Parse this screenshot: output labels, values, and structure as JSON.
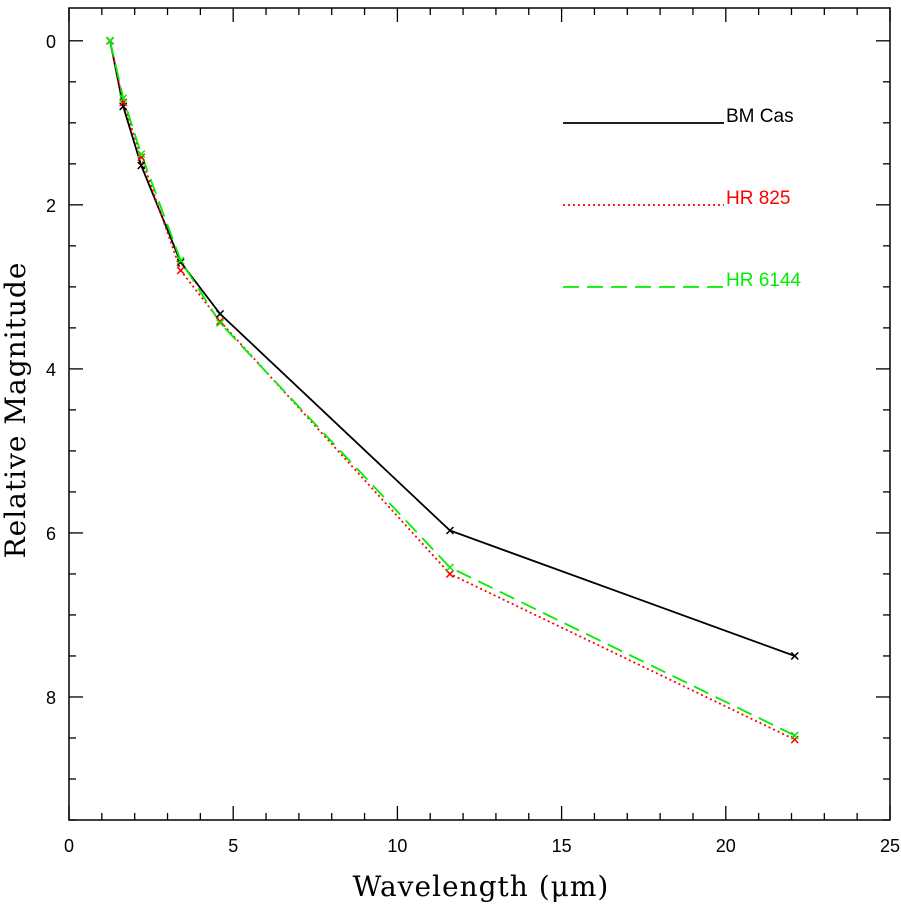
{
  "chart_data": {
    "type": "line",
    "title": "",
    "xlabel": "Wavelength (μm)",
    "ylabel": "Relative Magnitude",
    "xlim": [
      0,
      25
    ],
    "ylim": [
      9.5,
      -0.4
    ],
    "y_inverted": true,
    "x_ticks": [
      0,
      5,
      10,
      15,
      20,
      25
    ],
    "x_tick_labels": [
      "0",
      "5",
      "10",
      "15",
      "20",
      "25"
    ],
    "y_ticks": [
      0,
      2,
      4,
      6,
      8
    ],
    "y_tick_labels": [
      "0",
      "2",
      "4",
      "6",
      "8"
    ],
    "grid": false,
    "legend_position": "top-right",
    "series": [
      {
        "name": "BM Cas",
        "color": "#000000",
        "style": "solid",
        "marker": "x",
        "x": [
          1.25,
          1.65,
          2.2,
          3.4,
          4.6,
          11.6,
          22.1
        ],
        "y": [
          0.0,
          0.8,
          1.52,
          2.7,
          3.33,
          5.97,
          7.5
        ]
      },
      {
        "name": "HR 825",
        "color": "#ff0000",
        "style": "dotted",
        "marker": "x",
        "x": [
          1.25,
          1.65,
          2.2,
          3.4,
          4.6,
          11.6,
          22.1
        ],
        "y": [
          0.0,
          0.75,
          1.42,
          2.8,
          3.42,
          6.5,
          8.52
        ]
      },
      {
        "name": "HR 6144",
        "color": "#00ee00",
        "style": "dashed",
        "marker": "x",
        "x": [
          1.25,
          1.65,
          2.2,
          3.4,
          4.6,
          11.6,
          22.1
        ],
        "y": [
          0.0,
          0.7,
          1.38,
          2.68,
          3.44,
          6.42,
          8.47
        ]
      }
    ]
  }
}
